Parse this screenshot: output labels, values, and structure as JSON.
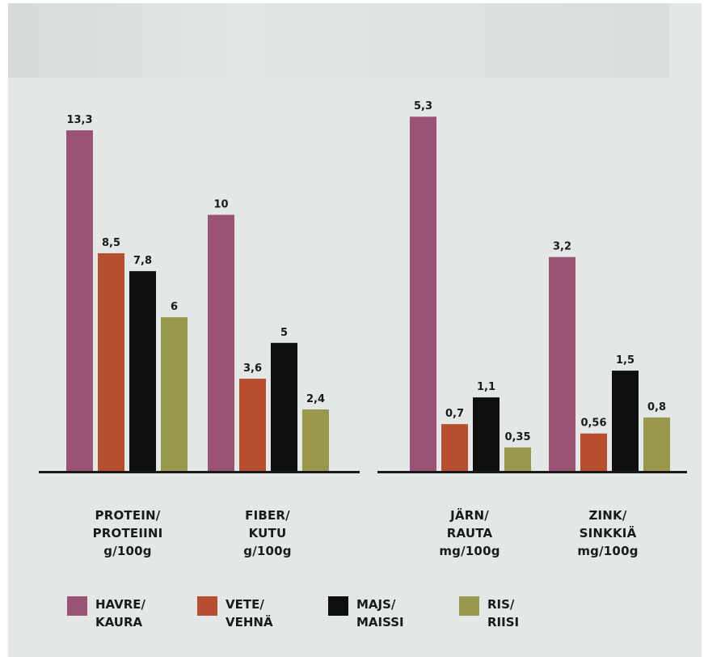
{
  "chart_data": {
    "type": "bar",
    "colors": {
      "havre": "#9a5375",
      "vete": "#b84e30",
      "majs": "#0f0f0f",
      "ris": "#98974a",
      "axis": "#1a1a1a"
    },
    "series": [
      {
        "name": [
          "HAVRE/",
          "KAURA"
        ]
      },
      {
        "name": [
          "VETE/",
          "VEHNÄ"
        ]
      },
      {
        "name": [
          "MAJS/",
          "MAISSI"
        ]
      },
      {
        "name": [
          "RIS/",
          "RIISI"
        ]
      }
    ],
    "groups": [
      {
        "categories": [
          {
            "label": [
              "PROTEIN/",
              "PROTEIINI",
              "g/100g"
            ],
            "values": [
              13.3,
              8.5,
              7.8,
              6
            ],
            "labels": [
              "13,3",
              "8,5",
              "7,8",
              "6"
            ]
          },
          {
            "label": [
              "FIBER/",
              "KUTU",
              "g/100g"
            ],
            "values": [
              10,
              3.6,
              5,
              2.4
            ],
            "labels": [
              "10",
              "3,6",
              "5",
              "2,4"
            ]
          }
        ]
      },
      {
        "categories": [
          {
            "label": [
              "JÄRN/",
              "RAUTA",
              "mg/100g"
            ],
            "values": [
              5.3,
              0.7,
              1.1,
              0.35
            ],
            "labels": [
              "5,3",
              "0,7",
              "1,1",
              "0,35"
            ]
          },
          {
            "label": [
              "ZINK/",
              "SINKKIÄ",
              "mg/100g"
            ],
            "values": [
              3.2,
              0.56,
              1.5,
              0.8
            ],
            "labels": [
              "3,2",
              "0,56",
              "1,5",
              "0,8"
            ]
          }
        ]
      }
    ]
  }
}
